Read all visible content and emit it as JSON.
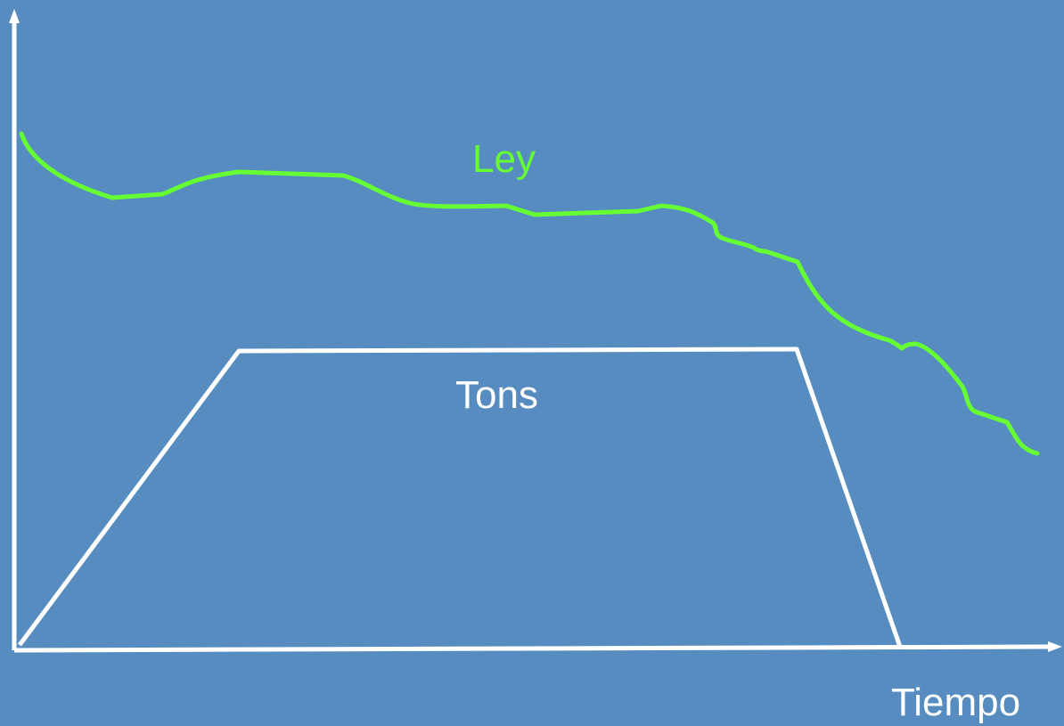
{
  "colors": {
    "background": "#568CC0",
    "axis": "#FFFFFF",
    "ley_curve": "#66FF33",
    "tons_curve": "#FFFFFF"
  },
  "labels": {
    "ley": "Ley",
    "tons": "Tons",
    "x_axis": "Tiempo"
  }
}
